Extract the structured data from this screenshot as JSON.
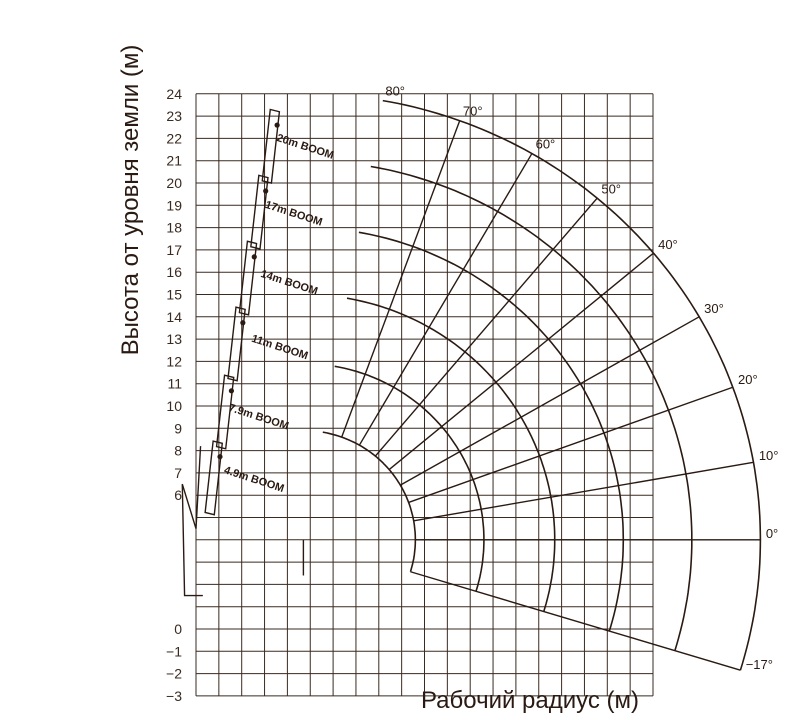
{
  "chart_data": {
    "type": "line",
    "title": "",
    "xlabel": "Рабочий радиус (м)",
    "ylabel": "Высота от уровня земли (м)",
    "xlim": [
      0,
      20
    ],
    "ylim": [
      -3,
      24
    ],
    "grid": true,
    "x_ticks": [
      "0",
      "1",
      "2",
      "3",
      "4",
      "5",
      "6",
      "7",
      "8",
      "9",
      "10",
      "11",
      "12",
      "13",
      "14",
      "15",
      "16",
      "17",
      "18",
      "19",
      "20"
    ],
    "y_ticks_upper": [
      "6",
      "7",
      "8",
      "9",
      "10",
      "11",
      "12",
      "13",
      "14",
      "15",
      "16",
      "17",
      "18",
      "19",
      "20",
      "21",
      "22",
      "23",
      "24"
    ],
    "y_ticks_lower": [
      "0",
      "-1",
      "-2",
      "-3"
    ],
    "pivot": {
      "x": 4.7,
      "y": 4.0
    },
    "booms": [
      {
        "name": "4.9m BOOM",
        "length": 4.9,
        "label_x": 1.2,
        "label_y": 7.0
      },
      {
        "name": "7.9m BOOM",
        "length": 7.9,
        "label_x": 1.4,
        "label_y": 9.8
      },
      {
        "name": "11m BOOM",
        "length": 11.0,
        "label_x": 2.4,
        "label_y": 12.9
      },
      {
        "name": "14m BOOM",
        "length": 14.0,
        "label_x": 2.8,
        "label_y": 15.8
      },
      {
        "name": "17m BOOM",
        "length": 17.0,
        "label_x": 3.0,
        "label_y": 18.9
      },
      {
        "name": "20m BOOM",
        "length": 20.0,
        "label_x": 3.5,
        "label_y": 21.9
      }
    ],
    "angles": [
      {
        "label": "80°",
        "deg": 80
      },
      {
        "label": "70°",
        "deg": 70
      },
      {
        "label": "60°",
        "deg": 60
      },
      {
        "label": "50°",
        "deg": 50
      },
      {
        "label": "40°",
        "deg": 40
      },
      {
        "label": "30°",
        "deg": 30
      },
      {
        "label": "20°",
        "deg": 20
      },
      {
        "label": "10°",
        "deg": 10
      },
      {
        "label": "0°",
        "deg": 0
      },
      {
        "label": "-17°",
        "deg": -17
      }
    ]
  }
}
